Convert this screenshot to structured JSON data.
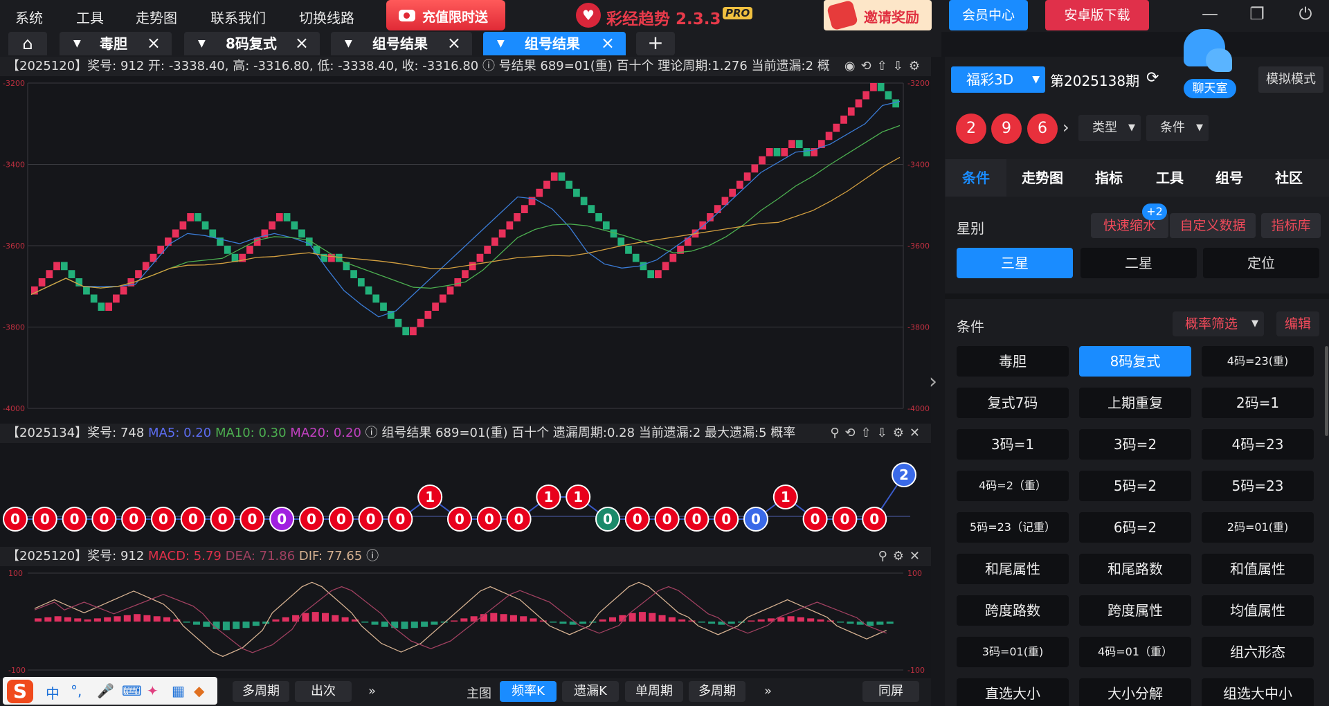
{
  "menu": [
    "系统",
    "工具",
    "走势图",
    "联系我们",
    "切换线路"
  ],
  "promo_label": "充值限时送",
  "app_title": "彩经趋势 2.3.3",
  "pro_badge": "PRO",
  "invite_label": "邀请奖励",
  "member_center": "会员中心",
  "android_download": "安卓版下载",
  "window_controls": {
    "minimize": "—",
    "restore": "❐",
    "power": "⏻"
  },
  "tabs": [
    {
      "label": "毒胆",
      "active": false
    },
    {
      "label": "8码复式",
      "active": false
    },
    {
      "label": "组号结果",
      "active": false
    },
    {
      "label": "组号结果",
      "active": true
    }
  ],
  "chart_info": "【2025120】奖号: 912  开: -3338.40, 高: -3316.80, 低: -3338.40, 收: -3316.80  ⓘ 号结果  689=01(重)  百十个  理论周期:1.276  当前遗漏:2  概",
  "mid_info": {
    "prefix": "【2025134】奖号: 748 ",
    "ma5": "MA5: 0.20",
    "ma10": "MA10: 0.30",
    "ma20": "MA20: 0.20",
    "suffix": " ⓘ  组号结果  689=01(重)  百十个  遗漏周期:0.28  当前遗漏:2  最大遗漏:5  概率"
  },
  "macd_info": {
    "prefix": "【2025120】奖号: 912 ",
    "macd": "MACD: 5.79",
    "dea": "DEA: 71.86",
    "dif": "DIF: 77.65"
  },
  "chart_data": [
    {
      "type": "candlestick",
      "title": "",
      "y_ticks": [
        "-3200",
        "-3400",
        "-3600",
        "-3800",
        "-4000"
      ],
      "ylim": [
        -4000,
        -3200
      ],
      "close_series": [
        -3720,
        -3680,
        -3640,
        -3760,
        -3720,
        -3680,
        -3620,
        -3560,
        -3520,
        -3580,
        -3640,
        -3600,
        -3560,
        -3520,
        -3600,
        -3640,
        -3620,
        -3760,
        -3820,
        -3780,
        -3740,
        -3700,
        -3660,
        -3620,
        -3580,
        -3540,
        -3500,
        -3460,
        -3420,
        -3560,
        -3600,
        -3640,
        -3660,
        -3680,
        -3640,
        -3620,
        -3600,
        -3560,
        -3520,
        -3480,
        -3440,
        -3400,
        -3360,
        -3380,
        -3340,
        -3380,
        -3300,
        -3280,
        -3240,
        -3200,
        -3260
      ],
      "ma_series_colors": [
        "#3a7bd5",
        "#4caf50",
        "#d4a040"
      ],
      "grid": true
    },
    {
      "type": "scatter",
      "title": "",
      "points": [
        0,
        0,
        0,
        0,
        0,
        0,
        0,
        0,
        0,
        0,
        0,
        0,
        0,
        0,
        1,
        0,
        0,
        0,
        1,
        1,
        0,
        0,
        0,
        0,
        0,
        0,
        1,
        0,
        0,
        0,
        2
      ],
      "point_colors": [
        "red",
        "red",
        "red",
        "red",
        "red",
        "red",
        "red",
        "red",
        "red",
        "purple",
        "red",
        "red",
        "red",
        "red",
        "red",
        "red",
        "red",
        "red",
        "red",
        "red",
        "teal",
        "red",
        "red",
        "red",
        "red",
        "blue",
        "red",
        "red",
        "red",
        "red",
        "blue"
      ]
    },
    {
      "type": "bar",
      "title": "",
      "y_ticks": [
        "100",
        "-100"
      ],
      "ylim": [
        -100,
        100
      ],
      "histogram": [
        3,
        4,
        5,
        4,
        3,
        2,
        3,
        4,
        5,
        6,
        7,
        6,
        5,
        4,
        2,
        -1,
        -3,
        -5,
        -7,
        -8,
        -7,
        -6,
        -4,
        -2,
        2,
        4,
        6,
        8,
        9,
        8,
        6,
        4,
        2,
        -1,
        -3,
        -5,
        -6,
        -7,
        -6,
        -5,
        -3,
        -1,
        1,
        3,
        5,
        7,
        8,
        7,
        6,
        5,
        3,
        1,
        -1,
        -2,
        -3,
        -2,
        -1,
        2,
        4,
        6,
        8,
        9,
        8,
        6,
        4,
        2,
        1,
        -1,
        -2,
        -3,
        -2,
        -1,
        1,
        2,
        3,
        4,
        5,
        4,
        3,
        2,
        1,
        -1,
        -2,
        -3,
        -4,
        -3,
        -2
      ]
    }
  ],
  "bottom_left": {
    "multi_period": "多周期",
    "appear": "出次",
    "more": "»"
  },
  "bottom_main": {
    "main_label": "主图",
    "freq": "频率K",
    "miss": "遗漏K",
    "single": "单周期",
    "multi": "多周期",
    "more": "»",
    "sync": "同屏"
  },
  "sidebar": {
    "lottery": "福彩3D",
    "period": "第2025138期",
    "chat_label": "聊天室",
    "sim_mode": "模拟模式",
    "balls": [
      "2",
      "9",
      "6"
    ],
    "type_drop": "类型",
    "cond_drop": "条件",
    "tabs": [
      "条件",
      "走势图",
      "指标",
      "工具",
      "组号",
      "社区"
    ],
    "star_label": "星别",
    "quick_zoom": "快速缩水",
    "badge": "+2",
    "custom_data": "自定义数据",
    "indicator_lib": "指标库",
    "stars": [
      "三星",
      "二星",
      "定位"
    ],
    "cond_label": "条件",
    "prob_filter": "概率筛选",
    "edit": "编辑",
    "grid": [
      "毒胆",
      "8码复式",
      "4码=23(重)",
      "复式7码",
      "上期重复",
      "2码=1",
      "3码=1",
      "3码=2",
      "4码=23",
      "4码=2（重）",
      "5码=2",
      "5码=23",
      "5码=23（记重）",
      "6码=2",
      "2码=01(重)",
      "和尾属性",
      "和尾路数",
      "和值属性",
      "跨度路数",
      "跨度属性",
      "均值属性",
      "3码=01(重)",
      "4码=01（重）",
      "组六形态",
      "直选大小",
      "大小分解",
      "组选大中小"
    ]
  },
  "ime": {
    "cn": "中",
    "punct": "°,",
    "mic": "🎤",
    "kbd": "⌨"
  }
}
